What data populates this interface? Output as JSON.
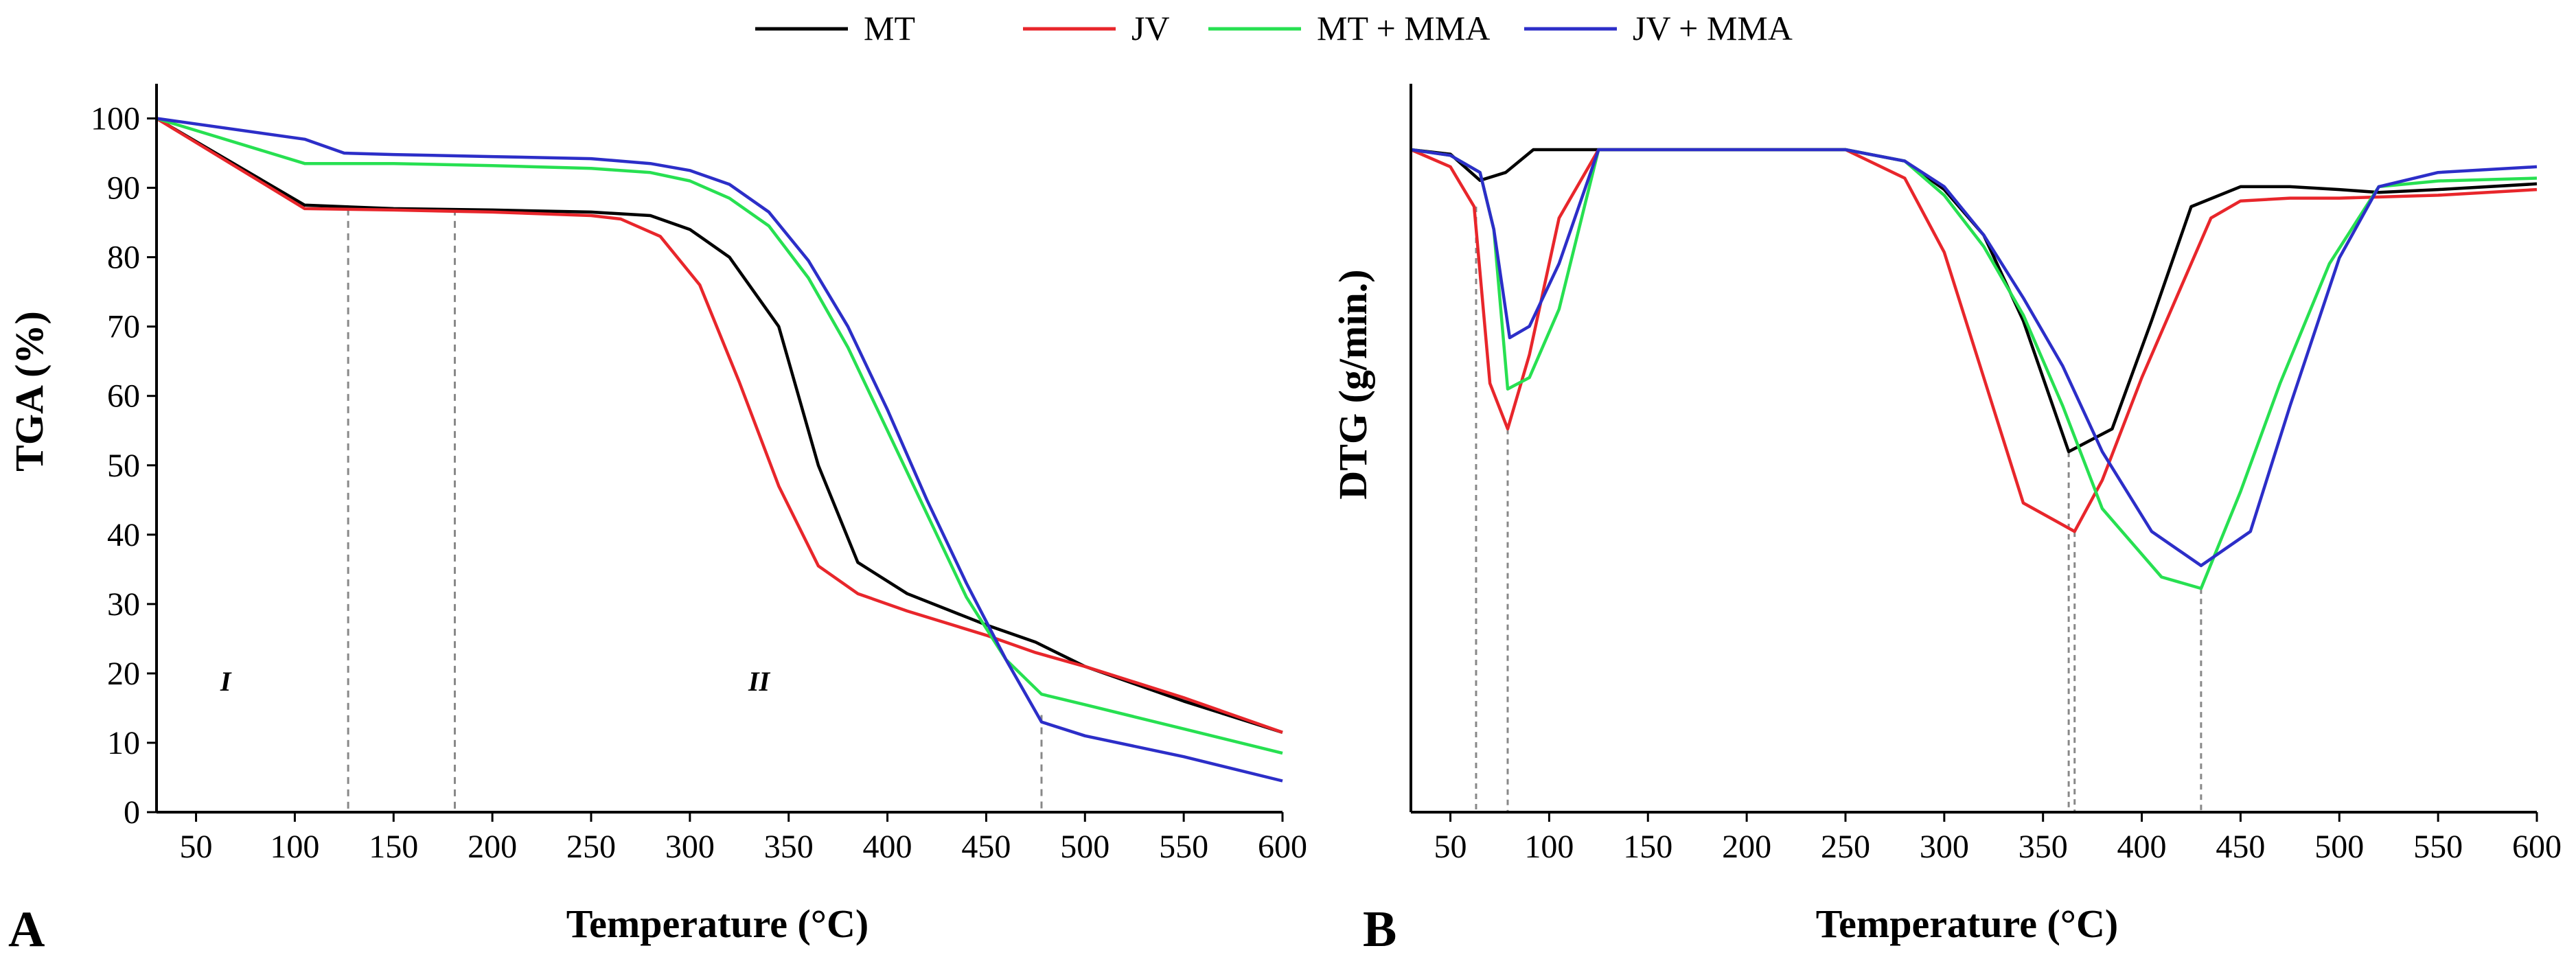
{
  "legend": [
    {
      "label": "MT",
      "color": "#000000"
    },
    {
      "label": "JV",
      "color": "#e8262b"
    },
    {
      "label": "MT + MMA",
      "color": "#27e051"
    },
    {
      "label": "JV + MMA",
      "color": "#2c2ec8"
    }
  ],
  "chart_data": [
    {
      "type": "line",
      "panel": "A",
      "xlabel": "Temperature (°C)",
      "ylabel": "TGA (%)",
      "xlim": [
        30,
        600
      ],
      "ylim": [
        0,
        105
      ],
      "xticks": [
        50,
        100,
        150,
        200,
        250,
        300,
        350,
        400,
        450,
        500,
        550,
        600
      ],
      "yticks": [
        0,
        10,
        20,
        30,
        40,
        50,
        60,
        70,
        80,
        90,
        100
      ],
      "grid": false,
      "legend_position": "top-center",
      "annotations": [
        {
          "text": "I",
          "x": 65,
          "y": 17.5
        },
        {
          "text": "II",
          "x": 335,
          "y": 17.5
        }
      ],
      "reference_lines": [
        127,
        181,
        478
      ],
      "series": [
        {
          "name": "MT",
          "color": "#000000",
          "x": [
            30,
            105,
            150,
            200,
            250,
            280,
            300,
            320,
            345,
            365,
            385,
            410,
            450,
            475,
            500,
            550,
            600
          ],
          "y": [
            100,
            87.5,
            87,
            86.8,
            86.5,
            86,
            84,
            80,
            70,
            50,
            36,
            31.5,
            27,
            24.5,
            21,
            16,
            11.5
          ]
        },
        {
          "name": "JV",
          "color": "#e8262b",
          "x": [
            30,
            105,
            150,
            200,
            250,
            265,
            285,
            305,
            325,
            345,
            365,
            385,
            410,
            450,
            475,
            500,
            550,
            600
          ],
          "y": [
            100,
            87,
            86.8,
            86.5,
            86,
            85.5,
            83,
            76,
            62,
            47,
            35.5,
            31.5,
            29,
            25.5,
            23,
            21,
            16.5,
            11.5
          ]
        },
        {
          "name": "MT + MMA",
          "color": "#27e051",
          "x": [
            30,
            105,
            150,
            200,
            250,
            280,
            300,
            320,
            340,
            360,
            380,
            400,
            420,
            440,
            460,
            478,
            500,
            550,
            600
          ],
          "y": [
            100,
            93.5,
            93.5,
            93.2,
            92.8,
            92.2,
            91,
            88.5,
            84.5,
            77,
            67,
            55,
            43,
            31,
            22,
            17,
            15.5,
            12,
            8.5
          ]
        },
        {
          "name": "JV + MMA",
          "color": "#2c2ec8",
          "x": [
            30,
            105,
            125,
            150,
            200,
            250,
            280,
            300,
            320,
            340,
            360,
            380,
            400,
            420,
            440,
            460,
            478,
            500,
            550,
            600
          ],
          "y": [
            100,
            97,
            95,
            94.8,
            94.5,
            94.2,
            93.5,
            92.5,
            90.5,
            86.5,
            79.5,
            70,
            58,
            45,
            33,
            22,
            13,
            11,
            8,
            4.5
          ]
        }
      ]
    },
    {
      "type": "line",
      "panel": "B",
      "xlabel": "Temperature (°C)",
      "ylabel": "DTG (g/min.)",
      "xlim": [
        30,
        600
      ],
      "xticks": [
        50,
        100,
        150,
        200,
        250,
        300,
        350,
        400,
        450,
        500,
        550,
        600
      ],
      "y_tick_labels": false,
      "grid": false,
      "reference_lines": [
        63,
        79,
        363,
        366,
        430
      ],
      "series": [
        {
          "name": "MT",
          "color": "#000000",
          "x": [
            30,
            50,
            65,
            78,
            92,
            125,
            150,
            200,
            250,
            280,
            300,
            320,
            340,
            363,
            385,
            405,
            425,
            450,
            475,
            500,
            520,
            550,
            600
          ],
          "y": [
            0,
            0.8,
            5.4,
            4,
            0,
            0,
            0,
            0,
            0,
            2,
            7,
            15,
            30,
            53,
            49,
            30,
            10,
            6.5,
            6.5,
            7,
            7.5,
            7,
            6
          ]
        },
        {
          "name": "JV",
          "color": "#e8262b",
          "x": [
            30,
            50,
            62,
            70,
            79,
            90,
            105,
            125,
            150,
            200,
            250,
            280,
            300,
            320,
            340,
            366,
            380,
            400,
            420,
            435,
            450,
            475,
            500,
            550,
            600
          ],
          "y": [
            0,
            3,
            10,
            41,
            49,
            36,
            12,
            0,
            0,
            0,
            0,
            5,
            18,
            40,
            62,
            67,
            58,
            40,
            24,
            12,
            9,
            8.5,
            8.5,
            8,
            7
          ]
        },
        {
          "name": "MT + MMA",
          "color": "#27e051",
          "x": [
            30,
            50,
            65,
            72,
            79,
            90,
            105,
            125,
            150,
            200,
            250,
            280,
            300,
            320,
            340,
            360,
            380,
            410,
            430,
            450,
            470,
            495,
            520,
            550,
            600
          ],
          "y": [
            0,
            1,
            4,
            14,
            42,
            40,
            28,
            0,
            0,
            0,
            0,
            2,
            8,
            17,
            29,
            45,
            63,
            75,
            77,
            60,
            41,
            20,
            6.5,
            5.5,
            5
          ]
        },
        {
          "name": "JV + MMA",
          "color": "#2c2ec8",
          "x": [
            30,
            50,
            65,
            72,
            80,
            90,
            105,
            125,
            150,
            200,
            250,
            280,
            300,
            320,
            340,
            360,
            380,
            405,
            430,
            455,
            475,
            500,
            520,
            550,
            600
          ],
          "y": [
            0,
            1,
            4,
            14,
            33,
            31,
            20,
            0,
            0,
            0,
            0,
            2,
            6.5,
            15,
            26,
            38,
            53,
            67,
            73,
            67,
            45,
            19,
            6.5,
            4,
            3
          ]
        }
      ]
    }
  ]
}
